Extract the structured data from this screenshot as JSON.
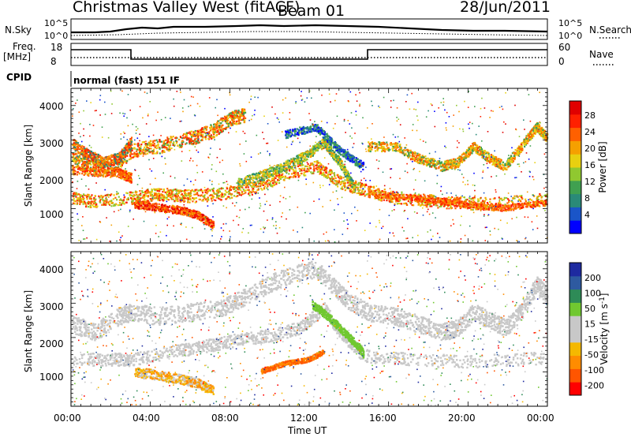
{
  "header": {
    "station": "Christmas Valley West (fitACF)",
    "beam": "Beam 01",
    "date": "28/Jun/2011"
  },
  "panels": {
    "nsky_label": "N.Sky",
    "nsky_ticks": [
      "10^5",
      "10^0"
    ],
    "nsky_right_ticks": [
      "10^5",
      "10^0"
    ],
    "nsearch_label": "N.Search",
    "freq_label": "Freq.",
    "freq_unit": "[MHz]",
    "freq_ticks": [
      "18",
      "8"
    ],
    "nave_label": "Nave",
    "nave_ticks": [
      "60",
      "0"
    ],
    "cpid_label": "CPID",
    "cpid_value": "normal (fast) 151 IF"
  },
  "colors": {
    "scale": [
      "#0000ff",
      "#1a55c8",
      "#2a8a78",
      "#40a050",
      "#90c830",
      "#e8d010",
      "#f5a000",
      "#ff6000",
      "#ff2000",
      "#e00000"
    ],
    "velocity": [
      "#ff0000",
      "#ff5500",
      "#ff8c00",
      "#f5b800",
      "#c8c8c8",
      "#c8c8c8",
      "#70c830",
      "#2e8b57",
      "#2e5aa0",
      "#1e2aa0"
    ]
  },
  "chart_data": [
    {
      "type": "heatmap",
      "name": "power",
      "ylabel": "Slant Range [km]",
      "y_ticks": [
        "1000",
        "2000",
        "3000",
        "4000"
      ],
      "colorbar_label": "Power [dB]",
      "colorbar_ticks": [
        "28",
        "24",
        "20",
        "16",
        "12",
        "8",
        "4"
      ],
      "colorbar_range": [
        0,
        32
      ]
    },
    {
      "type": "heatmap",
      "name": "velocity",
      "ylabel": "Slant Range [km]",
      "y_ticks": [
        "1000",
        "2000",
        "3000",
        "4000"
      ],
      "colorbar_label": "Velocity [m s",
      "colorbar_label_sup": "-1",
      "colorbar_label_close": "]",
      "colorbar_ticks": [
        "200",
        "100",
        "50",
        "15",
        "-15",
        "-50",
        "-100",
        "-200"
      ]
    }
  ],
  "x_axis": {
    "label": "Time UT",
    "ticks": [
      "00:00",
      "04:00",
      "08:00",
      "12:00",
      "16:00",
      "20:00",
      "00:00"
    ]
  }
}
